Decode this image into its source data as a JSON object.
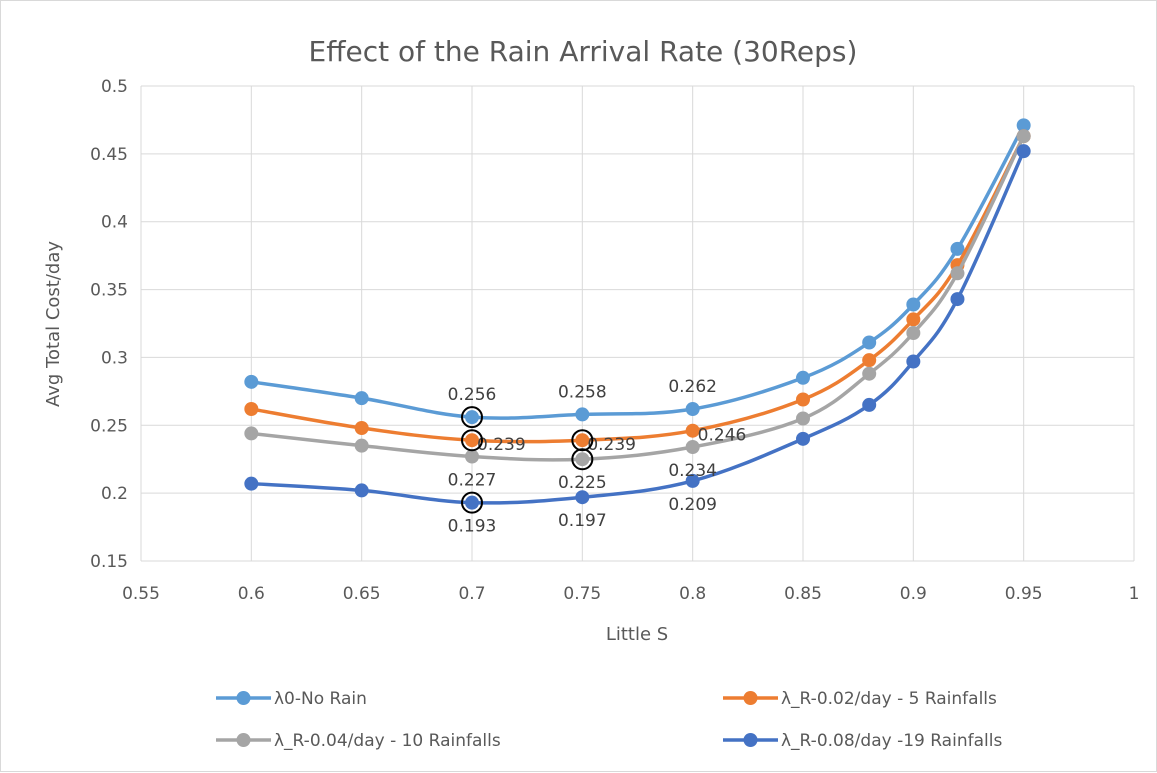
{
  "chart_data": {
    "type": "line",
    "title": "Effect of the Rain Arrival Rate (30Reps)",
    "xlabel": "Little S",
    "ylabel": "Avg Total Cost/day",
    "xlim": [
      0.55,
      1
    ],
    "ylim": [
      0.15,
      0.5
    ],
    "x_ticks": [
      "0.55",
      "0.6",
      "0.65",
      "0.7",
      "0.75",
      "0.8",
      "0.85",
      "0.9",
      "0.95",
      "1"
    ],
    "y_ticks": [
      "0.15",
      "0.2",
      "0.25",
      "0.3",
      "0.35",
      "0.4",
      "0.45",
      "0.5"
    ],
    "grid": "vertical and horizontal major gridlines",
    "legend_position": "bottom",
    "x": [
      0.6,
      0.65,
      0.7,
      0.75,
      0.8,
      0.85,
      0.88,
      0.9,
      0.92,
      0.95
    ],
    "series": [
      {
        "name": "λ0-No Rain",
        "color": "#5b9bd5",
        "values": [
          0.282,
          0.27,
          0.256,
          0.258,
          0.262,
          0.285,
          0.311,
          0.339,
          0.38,
          0.471
        ],
        "labels": [
          {
            "x": 0.7,
            "text": "0.256",
            "pos": "above"
          },
          {
            "x": 0.75,
            "text": "0.258",
            "pos": "above"
          },
          {
            "x": 0.8,
            "text": "0.262",
            "pos": "above"
          }
        ],
        "circled": [
          0.7
        ]
      },
      {
        "name": "λ_R-0.02/day - 5 Rainfalls",
        "color": "#ed7d31",
        "values": [
          0.262,
          0.248,
          0.239,
          0.239,
          0.246,
          0.269,
          0.298,
          0.328,
          0.368,
          0.463
        ],
        "labels": [
          {
            "x": 0.7,
            "text": "0.239",
            "pos": "right"
          },
          {
            "x": 0.75,
            "text": "0.239",
            "pos": "right"
          },
          {
            "x": 0.8,
            "text": "0.246",
            "pos": "right"
          }
        ],
        "circled": [
          0.7,
          0.75
        ]
      },
      {
        "name": "λ_R-0.04/day - 10 Rainfalls",
        "color": "#a5a5a5",
        "values": [
          0.244,
          0.235,
          0.227,
          0.225,
          0.234,
          0.255,
          0.288,
          0.318,
          0.362,
          0.463
        ],
        "labels": [
          {
            "x": 0.7,
            "text": "0.227",
            "pos": "below"
          },
          {
            "x": 0.75,
            "text": "0.225",
            "pos": "below"
          },
          {
            "x": 0.8,
            "text": "0.234",
            "pos": "below"
          }
        ],
        "circled": [
          0.75
        ]
      },
      {
        "name": "λ_R-0.08/day -19 Rainfalls",
        "color": "#4472c4",
        "values": [
          0.207,
          0.202,
          0.193,
          0.197,
          0.209,
          0.24,
          0.265,
          0.297,
          0.343,
          0.452
        ],
        "labels": [
          {
            "x": 0.7,
            "text": "0.193",
            "pos": "below"
          },
          {
            "x": 0.75,
            "text": "0.197",
            "pos": "below"
          },
          {
            "x": 0.8,
            "text": "0.209",
            "pos": "below"
          }
        ],
        "circled": [
          0.7
        ]
      }
    ]
  }
}
